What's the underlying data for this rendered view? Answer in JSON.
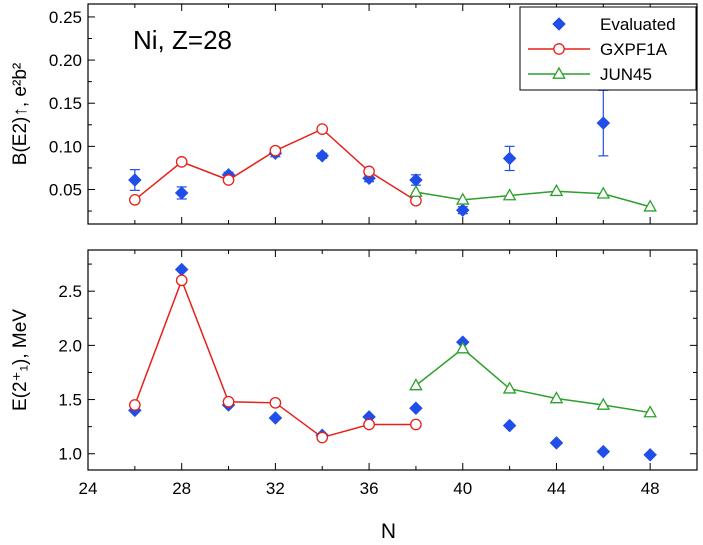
{
  "chart_data": [
    {
      "type": "scatter",
      "panel": "top",
      "annotation": "Ni, Z=28",
      "ylabel": "B(E2)↑, e²b²",
      "xlabel": "",
      "xlim": [
        24,
        50
      ],
      "ylim": [
        0.01,
        0.265
      ],
      "xticks": [
        24,
        28,
        32,
        36,
        40,
        44,
        48
      ],
      "yticks": [
        0.05,
        0.1,
        0.15,
        0.2,
        0.25
      ],
      "ytick_labels": [
        "0.05",
        "0.10",
        "0.15",
        "0.20",
        "0.25"
      ],
      "legend_position": "top-right",
      "series": [
        {
          "name": "Evaluated",
          "marker": "diamond",
          "color": "#1f4fe8",
          "x": [
            26,
            28,
            30,
            32,
            34,
            36,
            38,
            40,
            42,
            46
          ],
          "y": [
            0.061,
            0.046,
            0.067,
            0.092,
            0.089,
            0.063,
            0.061,
            0.026,
            0.086,
            0.127
          ],
          "err": [
            0.012,
            0.007,
            0.003,
            0.004,
            0.003,
            0.004,
            0.006,
            0.004,
            0.014,
            0.038
          ]
        },
        {
          "name": "GXPF1A",
          "marker": "circle-open",
          "color": "#e8201a",
          "x": [
            26,
            28,
            30,
            32,
            34,
            36,
            38
          ],
          "y": [
            0.038,
            0.082,
            0.061,
            0.095,
            0.12,
            0.071,
            0.037
          ]
        },
        {
          "name": "JUN45",
          "marker": "triangle-open",
          "color": "#2ca02c",
          "x": [
            38,
            40,
            42,
            44,
            46,
            48
          ],
          "y": [
            0.047,
            0.038,
            0.043,
            0.048,
            0.045,
            0.03
          ]
        }
      ]
    },
    {
      "type": "scatter",
      "panel": "bottom",
      "ylabel": "E(2⁺₁), MeV",
      "xlabel": "N",
      "xlim": [
        24,
        50
      ],
      "ylim": [
        0.85,
        2.88
      ],
      "xticks": [
        24,
        28,
        32,
        36,
        40,
        44,
        48
      ],
      "xtick_labels": [
        "24",
        "28",
        "32",
        "36",
        "40",
        "44",
        "48"
      ],
      "yticks": [
        1.0,
        1.5,
        2.0,
        2.5
      ],
      "ytick_labels": [
        "1.0",
        "1.5",
        "2.0",
        "2.5"
      ],
      "series": [
        {
          "name": "Evaluated",
          "marker": "diamond",
          "color": "#1f4fe8",
          "x": [
            26,
            28,
            30,
            32,
            34,
            36,
            38,
            40,
            42,
            44,
            46,
            48
          ],
          "y": [
            1.4,
            2.7,
            1.45,
            1.33,
            1.17,
            1.34,
            1.42,
            2.03,
            1.26,
            1.1,
            1.02,
            0.99
          ]
        },
        {
          "name": "GXPF1A",
          "marker": "circle-open",
          "color": "#e8201a",
          "x": [
            26,
            28,
            30,
            32,
            34,
            36,
            38
          ],
          "y": [
            1.45,
            2.6,
            1.48,
            1.47,
            1.15,
            1.27,
            1.27
          ]
        },
        {
          "name": "JUN45",
          "marker": "triangle-open",
          "color": "#2ca02c",
          "x": [
            38,
            40,
            42,
            44,
            46,
            48
          ],
          "y": [
            1.63,
            1.97,
            1.6,
            1.51,
            1.45,
            1.38
          ]
        }
      ]
    }
  ]
}
